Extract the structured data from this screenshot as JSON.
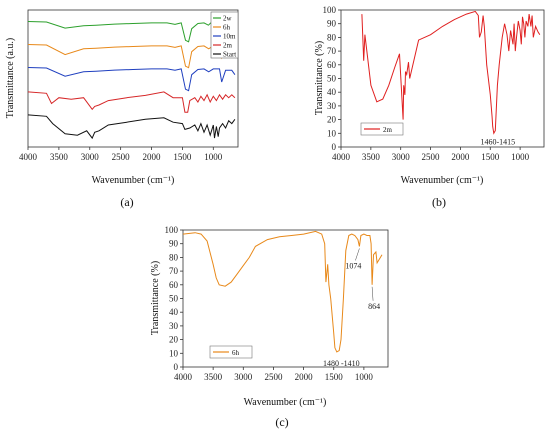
{
  "chart_data": [
    {
      "panel": "(a)",
      "type": "line",
      "xlabel": "Wavenumber (cm⁻¹)",
      "ylabel": "Transmittance (a.u.)",
      "xlim": [
        4000,
        600
      ],
      "xticks": [
        4000,
        3500,
        3000,
        2500,
        2000,
        1500,
        1000
      ],
      "yticks_shown": false,
      "legend": "top-right",
      "series": [
        {
          "name": "2w",
          "color": "#2ca02c",
          "offset": 4,
          "x": [
            4000,
            3700,
            3400,
            3100,
            2900,
            2600,
            2300,
            2000,
            1750,
            1620,
            1520,
            1450,
            1400,
            1350,
            1250,
            1150,
            1080,
            1040,
            950,
            880,
            870,
            800,
            700,
            650
          ],
          "y": [
            0.95,
            0.93,
            0.72,
            0.8,
            0.82,
            0.86,
            0.88,
            0.9,
            0.9,
            0.85,
            0.9,
            0.3,
            0.25,
            0.7,
            0.88,
            0.9,
            0.82,
            0.9,
            0.9,
            0.75,
            0.6,
            0.85,
            0.88,
            0.7
          ]
        },
        {
          "name": "6h",
          "color": "#e8891a",
          "offset": 3,
          "x": [
            4000,
            3700,
            3400,
            3100,
            2900,
            2600,
            2300,
            2000,
            1750,
            1620,
            1520,
            1450,
            1400,
            1350,
            1250,
            1150,
            1074,
            1000,
            900,
            864,
            800,
            700,
            650
          ],
          "y": [
            0.95,
            0.93,
            0.6,
            0.8,
            0.82,
            0.86,
            0.88,
            0.9,
            0.9,
            0.85,
            0.9,
            0.2,
            0.15,
            0.7,
            0.88,
            0.9,
            0.8,
            0.9,
            0.9,
            0.5,
            0.85,
            0.85,
            0.7
          ]
        },
        {
          "name": "10m",
          "color": "#1f3fbf",
          "offset": 2,
          "x": [
            4000,
            3700,
            3400,
            3100,
            2900,
            2600,
            2300,
            2000,
            1750,
            1620,
            1520,
            1450,
            1400,
            1350,
            1250,
            1150,
            1074,
            1000,
            900,
            864,
            800,
            700,
            650
          ],
          "y": [
            0.95,
            0.93,
            0.65,
            0.8,
            0.82,
            0.86,
            0.88,
            0.9,
            0.9,
            0.85,
            0.9,
            0.2,
            0.15,
            0.7,
            0.88,
            0.9,
            0.8,
            0.9,
            0.9,
            0.45,
            0.85,
            0.85,
            0.7
          ]
        },
        {
          "name": "2m",
          "color": "#d62728",
          "offset": 1,
          "x": [
            4000,
            3700,
            3620,
            3500,
            3300,
            3100,
            2960,
            2920,
            2850,
            2700,
            2400,
            2100,
            1800,
            1650,
            1500,
            1460,
            1415,
            1380,
            1300,
            1250,
            1200,
            1150,
            1100,
            1050,
            1000,
            950,
            900,
            850,
            800,
            750,
            700,
            650
          ],
          "y": [
            0.9,
            0.85,
            0.5,
            0.7,
            0.65,
            0.7,
            0.3,
            0.4,
            0.45,
            0.6,
            0.7,
            0.78,
            0.9,
            0.7,
            0.7,
            0.2,
            0.2,
            0.6,
            0.7,
            0.55,
            0.75,
            0.6,
            0.8,
            0.55,
            0.75,
            0.6,
            0.8,
            0.65,
            0.8,
            0.7,
            0.8,
            0.7
          ]
        },
        {
          "name": "Start",
          "color": "#111111",
          "offset": 0,
          "x": [
            4000,
            3700,
            3600,
            3400,
            3200,
            3050,
            2960,
            2920,
            2850,
            2700,
            2400,
            2100,
            1800,
            1650,
            1500,
            1460,
            1380,
            1300,
            1250,
            1200,
            1150,
            1100,
            1050,
            1000,
            980,
            950,
            920,
            900,
            850,
            800,
            750,
            700,
            650
          ],
          "y": [
            0.9,
            0.85,
            0.6,
            0.25,
            0.2,
            0.35,
            0.1,
            0.3,
            0.35,
            0.55,
            0.65,
            0.75,
            0.8,
            0.65,
            0.6,
            0.4,
            0.45,
            0.55,
            0.35,
            0.6,
            0.3,
            0.55,
            0.2,
            0.55,
            0.1,
            0.5,
            0.15,
            0.45,
            0.6,
            0.45,
            0.7,
            0.6,
            0.75
          ]
        }
      ]
    },
    {
      "panel": "(b)",
      "type": "line",
      "xlabel": "Wavenumber (cm⁻¹)",
      "ylabel": "Transmittance (%)",
      "xlim": [
        4000,
        600
      ],
      "ylim": [
        0,
        100
      ],
      "xticks": [
        4000,
        3500,
        3000,
        2500,
        2000,
        1500,
        1000
      ],
      "yticks": [
        0,
        10,
        20,
        30,
        40,
        50,
        60,
        70,
        80,
        90,
        100
      ],
      "legend": "bottom-left",
      "annotations": [
        {
          "text": "1460-1415",
          "x": 1440,
          "y": 12
        }
      ],
      "series": [
        {
          "name": "2m",
          "color": "#e02020",
          "x": [
            3650,
            3620,
            3600,
            3500,
            3400,
            3300,
            3200,
            3100,
            3020,
            2960,
            2950,
            2930,
            2920,
            2900,
            2870,
            2850,
            2700,
            2500,
            2300,
            2100,
            1900,
            1750,
            1700,
            1680,
            1650,
            1620,
            1600,
            1560,
            1500,
            1470,
            1460,
            1440,
            1415,
            1380,
            1350,
            1300,
            1260,
            1220,
            1190,
            1160,
            1120,
            1100,
            1080,
            1060,
            1030,
            1000,
            980,
            960,
            940,
            920,
            900,
            870,
            850,
            820,
            800,
            780,
            740,
            700,
            670
          ],
          "y": [
            97,
            63,
            82,
            45,
            33,
            35,
            45,
            58,
            68,
            20,
            45,
            38,
            55,
            53,
            62,
            50,
            78,
            82,
            88,
            93,
            97,
            99,
            96,
            80,
            84,
            96,
            88,
            60,
            38,
            22,
            15,
            10,
            12,
            45,
            60,
            80,
            90,
            82,
            70,
            85,
            75,
            90,
            70,
            80,
            92,
            85,
            75,
            95,
            90,
            80,
            92,
            88,
            97,
            88,
            96,
            80,
            88,
            84,
            82
          ]
        }
      ]
    },
    {
      "panel": "(c)",
      "type": "line",
      "xlabel": "Wavenumber (cm⁻¹)",
      "ylabel": "Transmittance (%)",
      "xlim": [
        4000,
        600
      ],
      "ylim": [
        0,
        100
      ],
      "xticks": [
        4000,
        3500,
        3000,
        2500,
        2000,
        1500,
        1000
      ],
      "yticks": [
        0,
        10,
        20,
        30,
        40,
        50,
        60,
        70,
        80,
        90,
        100
      ],
      "legend": "bottom-left",
      "annotations": [
        {
          "text": "1074",
          "x": 1074,
          "y": 88
        },
        {
          "text": "864",
          "x": 864,
          "y": 60
        },
        {
          "text": "1480 -1410",
          "x": 1440,
          "y": 11
        }
      ],
      "series": [
        {
          "name": "6h",
          "color": "#e8891a",
          "x": [
            4000,
            3800,
            3700,
            3600,
            3500,
            3450,
            3400,
            3300,
            3200,
            3100,
            3000,
            2900,
            2800,
            2600,
            2400,
            2200,
            2000,
            1800,
            1700,
            1650,
            1630,
            1600,
            1580,
            1550,
            1500,
            1480,
            1450,
            1410,
            1380,
            1340,
            1300,
            1250,
            1200,
            1150,
            1100,
            1074,
            1050,
            1000,
            950,
            900,
            880,
            864,
            840,
            800,
            780,
            740,
            700
          ],
          "y": [
            97,
            98,
            97,
            92,
            75,
            65,
            60,
            59,
            62,
            68,
            74,
            80,
            88,
            93,
            95,
            96,
            97,
            99,
            97,
            90,
            62,
            75,
            60,
            50,
            25,
            14,
            11,
            12,
            20,
            50,
            85,
            96,
            97,
            96,
            93,
            88,
            96,
            97,
            96,
            96,
            90,
            60,
            82,
            84,
            76,
            79,
            82
          ]
        }
      ]
    }
  ],
  "panels": {
    "a": {
      "label": "(a)",
      "legend_title_order": [
        "2w",
        "6h",
        "10m",
        "2m",
        "Start"
      ]
    },
    "b": {
      "label": "(b)"
    },
    "c": {
      "label": "(c)"
    }
  },
  "axis_texts": {
    "wavenumber": "Wavenumber (cm⁻¹)",
    "transmittance_au": "Transmittance (a.u.)",
    "transmittance_pct": "Transmittance (%)"
  }
}
